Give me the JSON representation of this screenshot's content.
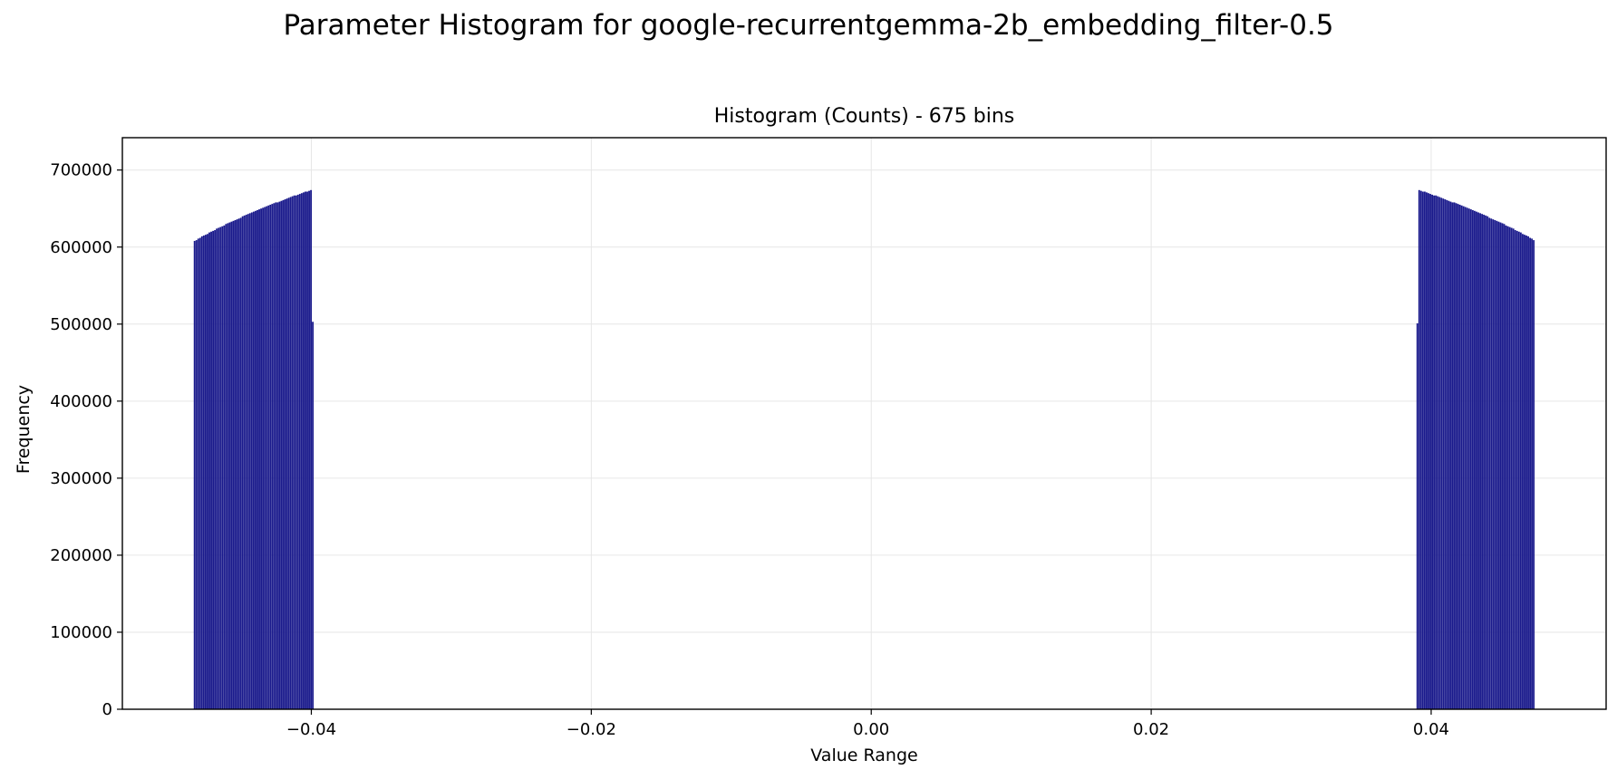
{
  "figure_title": "Parameter Histogram for google-recurrentgemma-2b_embedding_filter-0.5",
  "chart_data": {
    "type": "bar",
    "title": "Histogram (Counts) - 675 bins",
    "xlabel": "Value Range",
    "ylabel": "Frequency",
    "xlim": [
      -0.0535,
      0.0525
    ],
    "ylim": [
      0,
      742000
    ],
    "x_ticks": [
      -0.04,
      -0.02,
      0.0,
      0.02,
      0.04
    ],
    "x_tick_labels": [
      "−0.04",
      "−0.02",
      "0.00",
      "0.02",
      "0.04"
    ],
    "y_ticks": [
      0,
      100000,
      200000,
      300000,
      400000,
      500000,
      600000,
      700000
    ],
    "y_tick_labels": [
      "0",
      "100000",
      "200000",
      "300000",
      "400000",
      "500000",
      "600000",
      "700000"
    ],
    "grid": true,
    "bar_color": "#1a1a8c",
    "x_range": [
      -0.0484,
      0.0474
    ],
    "bins": 675,
    "values": [
      608000,
      609000,
      611000,
      612000,
      614000,
      615000,
      616000,
      617000,
      619000,
      620000,
      621000,
      622000,
      624000,
      625000,
      626000,
      627000,
      628000,
      630000,
      631000,
      632000,
      633000,
      634000,
      635000,
      636000,
      637000,
      638000,
      640000,
      641000,
      642000,
      643000,
      644000,
      645000,
      646000,
      647000,
      648000,
      649000,
      650000,
      651000,
      652000,
      653000,
      654000,
      655000,
      656000,
      657000,
      658000,
      658000,
      659000,
      660000,
      661000,
      662000,
      663000,
      664000,
      665000,
      666000,
      667000,
      667000,
      668000,
      669000,
      670000,
      671000,
      672000,
      672000,
      673000,
      674000,
      503000,
      0,
      0,
      0,
      0,
      0,
      0,
      0,
      0,
      0,
      0,
      0,
      0,
      0,
      0,
      0,
      0,
      0,
      0,
      0,
      0,
      0,
      0,
      0,
      0,
      0,
      0,
      0,
      0,
      0,
      0,
      0,
      0,
      0,
      0,
      0,
      0,
      0,
      0,
      0,
      0,
      0,
      0,
      0,
      0,
      0,
      0,
      0,
      0,
      0,
      0,
      0,
      0,
      0,
      0,
      0,
      0,
      0,
      0,
      0,
      0,
      0,
      0,
      0,
      0,
      0,
      0,
      0,
      0,
      0,
      0,
      0,
      0,
      0,
      0,
      0,
      0,
      0,
      0,
      0,
      0,
      0,
      0,
      0,
      0,
      0,
      0,
      0,
      0,
      0,
      0,
      0,
      0,
      0,
      0,
      0,
      0,
      0,
      0,
      0,
      0,
      0,
      0,
      0,
      0,
      0,
      0,
      0,
      0,
      0,
      0,
      0,
      0,
      0,
      0,
      0,
      0,
      0,
      0,
      0,
      0,
      0,
      0,
      0,
      0,
      0,
      0,
      0,
      0,
      0,
      0,
      0,
      0,
      0,
      0,
      0,
      0,
      0,
      0,
      0,
      0,
      0,
      0,
      0,
      0,
      0,
      0,
      0,
      0,
      0,
      0,
      0,
      0,
      0,
      0,
      0,
      0,
      0,
      0,
      0,
      0,
      0,
      0,
      0,
      0,
      0,
      0,
      0,
      0,
      0,
      0,
      0,
      0,
      0,
      0,
      0,
      0,
      0,
      0,
      0,
      0,
      0,
      0,
      0,
      0,
      0,
      0,
      0,
      0,
      0,
      0,
      0,
      0,
      0,
      0,
      0,
      0,
      0,
      0,
      0,
      0,
      0,
      0,
      0,
      0,
      0,
      0,
      0,
      0,
      0,
      0,
      0,
      0,
      0,
      0,
      0,
      0,
      0,
      0,
      0,
      0,
      0,
      0,
      0,
      0,
      0,
      0,
      0,
      0,
      0,
      0,
      0,
      0,
      0,
      0,
      0,
      0,
      0,
      0,
      0,
      0,
      0,
      0,
      0,
      0,
      0,
      0,
      0,
      0,
      0,
      0,
      0,
      0,
      0,
      0,
      0,
      0,
      0,
      0,
      0,
      0,
      0,
      0,
      0,
      0,
      0,
      0,
      0,
      0,
      0,
      0,
      0,
      0,
      0,
      0,
      0,
      0,
      0,
      0,
      0,
      0,
      0,
      0,
      0,
      0,
      0,
      0,
      0,
      0,
      0,
      0,
      0,
      0,
      0,
      0,
      0,
      0,
      0,
      0,
      0,
      0,
      0,
      0,
      0,
      0,
      0,
      0,
      0,
      0,
      0,
      0,
      0,
      0,
      0,
      0,
      0,
      0,
      0,
      0,
      0,
      0,
      0,
      0,
      0,
      0,
      0,
      0,
      0,
      0,
      0,
      0,
      0,
      0,
      0,
      0,
      0,
      0,
      0,
      0,
      0,
      0,
      0,
      0,
      0,
      0,
      0,
      0,
      0,
      0,
      0,
      0,
      0,
      0,
      0,
      0,
      0,
      0,
      0,
      0,
      0,
      0,
      0,
      0,
      0,
      0,
      0,
      0,
      0,
      0,
      0,
      0,
      0,
      0,
      0,
      0,
      0,
      0,
      0,
      0,
      0,
      0,
      0,
      0,
      0,
      0,
      0,
      0,
      0,
      0,
      0,
      0,
      0,
      0,
      0,
      0,
      0,
      0,
      0,
      0,
      0,
      0,
      0,
      0,
      0,
      0,
      0,
      0,
      0,
      0,
      0,
      0,
      0,
      0,
      0,
      0,
      0,
      0,
      0,
      0,
      0,
      0,
      0,
      0,
      0,
      0,
      0,
      0,
      0,
      0,
      0,
      0,
      0,
      0,
      0,
      0,
      0,
      0,
      0,
      0,
      0,
      0,
      0,
      0,
      0,
      0,
      0,
      0,
      0,
      0,
      0,
      0,
      0,
      0,
      0,
      0,
      0,
      0,
      0,
      0,
      0,
      0,
      0,
      0,
      0,
      0,
      0,
      0,
      0,
      0,
      0,
      0,
      0,
      0,
      0,
      0,
      0,
      0,
      0,
      0,
      0,
      0,
      0,
      0,
      0,
      0,
      0,
      0,
      0,
      0,
      0,
      0,
      0,
      0,
      0,
      0,
      0,
      0,
      0,
      0,
      0,
      0,
      0,
      0,
      0,
      0,
      0,
      0,
      0,
      0,
      0,
      0,
      0,
      0,
      0,
      0,
      0,
      0,
      0,
      0,
      0,
      0,
      0,
      0,
      0,
      0,
      0,
      0,
      0,
      0,
      0,
      0,
      0,
      0,
      0,
      0,
      0,
      0,
      0,
      0,
      0,
      0,
      0,
      0,
      0,
      0,
      0,
      0,
      0,
      0,
      0,
      0,
      0,
      0,
      0,
      0,
      0,
      0,
      0,
      0,
      0,
      0,
      0,
      0,
      0,
      0,
      0,
      0,
      0,
      0,
      0,
      0,
      0,
      0,
      0,
      0,
      0,
      0,
      0,
      0,
      0,
      0,
      0,
      0,
      0,
      0,
      0,
      0,
      0,
      0,
      0,
      0,
      0,
      0,
      0,
      0,
      0,
      0,
      0,
      501000,
      674000,
      673000,
      672000,
      672000,
      671000,
      670000,
      669000,
      668000,
      667000,
      667000,
      666000,
      665000,
      664000,
      663000,
      662000,
      661000,
      660000,
      659000,
      658000,
      658000,
      657000,
      656000,
      655000,
      654000,
      653000,
      652000,
      651000,
      650000,
      649000,
      648000,
      647000,
      646000,
      645000,
      644000,
      643000,
      642000,
      641000,
      640000,
      638000,
      637000,
      636000,
      635000,
      634000,
      633000,
      632000,
      631000,
      630000,
      628000,
      627000,
      626000,
      625000,
      624000,
      622000,
      621000,
      620000,
      619000,
      617000,
      616000,
      615000,
      614000,
      612000,
      611000,
      609000
    ]
  }
}
